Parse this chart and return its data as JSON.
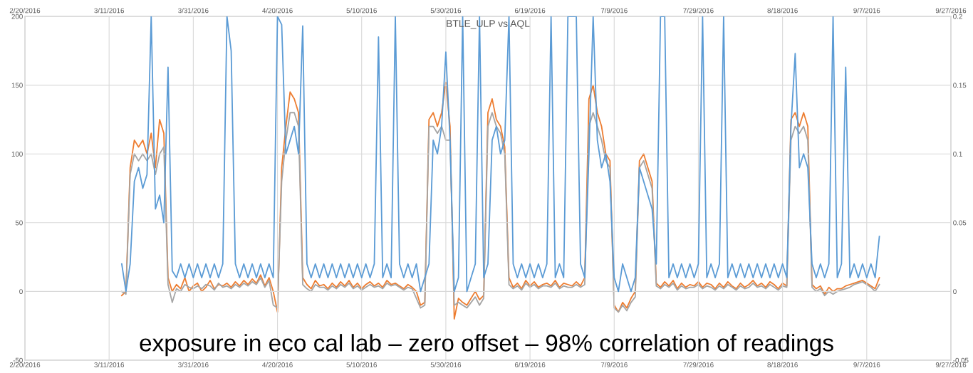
{
  "chart_data": {
    "type": "line",
    "title": "BTLE_ULP vs AQL",
    "x": [
      "2016-03-14",
      "2016-03-15",
      "2016-03-16",
      "2016-03-17",
      "2016-03-18",
      "2016-03-19",
      "2016-03-20",
      "2016-03-21",
      "2016-03-22",
      "2016-03-23",
      "2016-03-24",
      "2016-03-25",
      "2016-03-26",
      "2016-03-27",
      "2016-03-28",
      "2016-03-29",
      "2016-03-30",
      "2016-03-31",
      "2016-04-01",
      "2016-04-02",
      "2016-04-03",
      "2016-04-04",
      "2016-04-05",
      "2016-04-06",
      "2016-04-07",
      "2016-04-08",
      "2016-04-09",
      "2016-04-10",
      "2016-04-11",
      "2016-04-12",
      "2016-04-13",
      "2016-04-14",
      "2016-04-15",
      "2016-04-16",
      "2016-04-17",
      "2016-04-18",
      "2016-04-19",
      "2016-04-20",
      "2016-04-21",
      "2016-04-22",
      "2016-04-23",
      "2016-04-24",
      "2016-04-25",
      "2016-04-26",
      "2016-04-27",
      "2016-04-28",
      "2016-04-29",
      "2016-04-30",
      "2016-05-01",
      "2016-05-02",
      "2016-05-03",
      "2016-05-04",
      "2016-05-05",
      "2016-05-06",
      "2016-05-07",
      "2016-05-08",
      "2016-05-09",
      "2016-05-10",
      "2016-05-11",
      "2016-05-12",
      "2016-05-13",
      "2016-05-14",
      "2016-05-15",
      "2016-05-16",
      "2016-05-17",
      "2016-05-18",
      "2016-05-19",
      "2016-05-20",
      "2016-05-21",
      "2016-05-22",
      "2016-05-23",
      "2016-05-24",
      "2016-05-25",
      "2016-05-26",
      "2016-05-27",
      "2016-05-28",
      "2016-05-29",
      "2016-05-30",
      "2016-05-31",
      "2016-06-01",
      "2016-06-02",
      "2016-06-03",
      "2016-06-04",
      "2016-06-05",
      "2016-06-06",
      "2016-06-07",
      "2016-06-08",
      "2016-06-09",
      "2016-06-10",
      "2016-06-11",
      "2016-06-12",
      "2016-06-13",
      "2016-06-14",
      "2016-06-15",
      "2016-06-16",
      "2016-06-17",
      "2016-06-18",
      "2016-06-19",
      "2016-06-20",
      "2016-06-21",
      "2016-06-22",
      "2016-06-23",
      "2016-06-24",
      "2016-06-25",
      "2016-06-26",
      "2016-06-27",
      "2016-06-28",
      "2016-06-29",
      "2016-06-30",
      "2016-07-01",
      "2016-07-02",
      "2016-07-03",
      "2016-07-04",
      "2016-07-05",
      "2016-07-06",
      "2016-07-07",
      "2016-07-08",
      "2016-07-09",
      "2016-07-10",
      "2016-07-11",
      "2016-07-12",
      "2016-07-13",
      "2016-07-14",
      "2016-07-15",
      "2016-07-16",
      "2016-07-17",
      "2016-07-18",
      "2016-07-19",
      "2016-07-20",
      "2016-07-21",
      "2016-07-22",
      "2016-07-23",
      "2016-07-24",
      "2016-07-25",
      "2016-07-26",
      "2016-07-27",
      "2016-07-28",
      "2016-07-29",
      "2016-07-30",
      "2016-07-31",
      "2016-08-01",
      "2016-08-02",
      "2016-08-03",
      "2016-08-04",
      "2016-08-05",
      "2016-08-06",
      "2016-08-07",
      "2016-08-08",
      "2016-08-09",
      "2016-08-10",
      "2016-08-11",
      "2016-08-12",
      "2016-08-13",
      "2016-08-14",
      "2016-08-15",
      "2016-08-16",
      "2016-08-17",
      "2016-08-18",
      "2016-08-19",
      "2016-08-20",
      "2016-08-21",
      "2016-08-22",
      "2016-08-23",
      "2016-08-24",
      "2016-08-25",
      "2016-08-26",
      "2016-08-27",
      "2016-08-28",
      "2016-08-29",
      "2016-08-30",
      "2016-08-31",
      "2016-09-01",
      "2016-09-02",
      "2016-09-03",
      "2016-09-04",
      "2016-09-05",
      "2016-09-06",
      "2016-09-07",
      "2016-09-08",
      "2016-09-09",
      "2016-09-10"
    ],
    "series": [
      {
        "color": "#5b9bd5",
        "values": [
          20,
          0,
          20,
          80,
          90,
          75,
          85,
          200,
          60,
          70,
          50,
          163,
          15,
          10,
          20,
          10,
          20,
          10,
          20,
          10,
          20,
          10,
          20,
          10,
          20,
          200,
          175,
          20,
          10,
          20,
          10,
          20,
          10,
          20,
          10,
          20,
          10,
          200,
          194,
          100,
          110,
          120,
          100,
          193,
          20,
          10,
          20,
          10,
          20,
          10,
          20,
          10,
          20,
          10,
          20,
          10,
          20,
          10,
          20,
          10,
          20,
          185,
          10,
          20,
          10,
          200,
          20,
          10,
          20,
          10,
          20,
          0,
          10,
          20,
          110,
          100,
          120,
          174,
          110,
          0,
          10,
          200,
          0,
          10,
          20,
          200,
          10,
          20,
          110,
          120,
          100,
          110,
          200,
          20,
          10,
          20,
          10,
          20,
          10,
          20,
          10,
          20,
          200,
          10,
          20,
          10,
          200,
          200,
          200,
          20,
          10,
          100,
          200,
          110,
          90,
          100,
          80,
          10,
          0,
          20,
          10,
          0,
          10,
          90,
          80,
          70,
          60,
          20,
          200,
          200,
          10,
          20,
          10,
          20,
          10,
          20,
          10,
          20,
          200,
          10,
          20,
          10,
          20,
          200,
          10,
          20,
          10,
          20,
          10,
          20,
          10,
          20,
          10,
          20,
          10,
          20,
          10,
          20,
          10,
          120,
          173,
          90,
          100,
          90,
          20,
          10,
          20,
          10,
          20,
          200,
          10,
          20,
          163,
          10,
          20,
          10,
          20,
          10,
          20,
          10,
          40
        ]
      },
      {
        "color": "#ed7d31",
        "axis": "y2",
        "values": [
          -0.003,
          0.0,
          0.09,
          0.11,
          0.105,
          0.11,
          0.1,
          0.115,
          0.09,
          0.125,
          0.115,
          0.01,
          0.0,
          0.005,
          0.002,
          0.01,
          0.0,
          0.004,
          0.006,
          0.0,
          0.003,
          0.008,
          0.002,
          0.005,
          0.004,
          0.006,
          0.003,
          0.007,
          0.004,
          0.008,
          0.005,
          0.009,
          0.006,
          0.012,
          0.004,
          0.01,
          0.0,
          -0.015,
          0.09,
          0.12,
          0.145,
          0.14,
          0.13,
          0.01,
          0.005,
          0.002,
          0.008,
          0.004,
          0.005,
          0.002,
          0.006,
          0.003,
          0.007,
          0.004,
          0.008,
          0.003,
          0.006,
          0.002,
          0.005,
          0.007,
          0.004,
          0.006,
          0.003,
          0.008,
          0.005,
          0.006,
          0.004,
          0.002,
          0.005,
          0.003,
          0.0,
          -0.01,
          -0.008,
          0.125,
          0.13,
          0.12,
          0.13,
          0.152,
          0.12,
          -0.02,
          -0.005,
          -0.008,
          -0.01,
          -0.005,
          0.0,
          -0.006,
          -0.003,
          0.13,
          0.14,
          0.125,
          0.12,
          0.105,
          0.01,
          0.003,
          0.006,
          0.002,
          0.008,
          0.004,
          0.007,
          0.003,
          0.005,
          0.006,
          0.004,
          0.008,
          0.003,
          0.006,
          0.005,
          0.004,
          0.007,
          0.004,
          0.01,
          0.14,
          0.15,
          0.13,
          0.12,
          0.1,
          0.095,
          -0.01,
          -0.015,
          -0.008,
          -0.012,
          -0.005,
          0.0,
          0.095,
          0.1,
          0.09,
          0.08,
          0.006,
          0.003,
          0.007,
          0.004,
          0.008,
          0.002,
          0.006,
          0.003,
          0.005,
          0.004,
          0.007,
          0.003,
          0.006,
          0.005,
          0.002,
          0.006,
          0.003,
          0.007,
          0.004,
          0.002,
          0.006,
          0.003,
          0.005,
          0.008,
          0.004,
          0.006,
          0.003,
          0.007,
          0.005,
          0.002,
          0.006,
          0.004,
          0.125,
          0.13,
          0.12,
          0.13,
          0.12,
          0.005,
          0.002,
          0.004,
          -0.002,
          0.003,
          0.0,
          0.002,
          0.002,
          0.004,
          0.005,
          0.006,
          0.007,
          0.008,
          0.006,
          0.004,
          0.002,
          0.01
        ]
      },
      {
        "color": "#a5a5a5",
        "axis": "y2",
        "values": [
          0.0,
          -0.002,
          0.085,
          0.1,
          0.095,
          0.1,
          0.095,
          0.1,
          0.085,
          0.1,
          0.105,
          0.005,
          -0.008,
          0.002,
          0.0,
          0.005,
          0.003,
          0.002,
          0.004,
          0.002,
          0.005,
          0.004,
          0.001,
          0.006,
          0.003,
          0.004,
          0.002,
          0.005,
          0.003,
          0.006,
          0.004,
          0.007,
          0.005,
          0.01,
          0.003,
          0.008,
          -0.01,
          -0.012,
          0.08,
          0.11,
          0.13,
          0.13,
          0.12,
          0.005,
          0.002,
          0.0,
          0.005,
          0.003,
          0.003,
          0.001,
          0.004,
          0.002,
          0.005,
          0.003,
          0.006,
          0.002,
          0.004,
          0.001,
          0.003,
          0.005,
          0.003,
          0.004,
          0.002,
          0.006,
          0.004,
          0.005,
          0.003,
          0.001,
          0.003,
          0.002,
          -0.005,
          -0.012,
          -0.01,
          0.12,
          0.12,
          0.115,
          0.12,
          0.11,
          0.11,
          -0.01,
          -0.008,
          -0.01,
          -0.012,
          -0.008,
          -0.004,
          -0.01,
          -0.005,
          0.12,
          0.13,
          0.12,
          0.115,
          0.1,
          0.005,
          0.002,
          0.004,
          0.001,
          0.006,
          0.003,
          0.005,
          0.002,
          0.004,
          0.004,
          0.003,
          0.006,
          0.002,
          0.004,
          0.003,
          0.003,
          0.005,
          0.003,
          0.005,
          0.12,
          0.13,
          0.12,
          0.11,
          0.095,
          0.09,
          -0.012,
          -0.015,
          -0.01,
          -0.014,
          -0.008,
          -0.004,
          0.09,
          0.095,
          0.085,
          0.075,
          0.004,
          0.002,
          0.005,
          0.003,
          0.006,
          0.001,
          0.004,
          0.002,
          0.003,
          0.003,
          0.005,
          0.002,
          0.004,
          0.003,
          0.001,
          0.004,
          0.002,
          0.005,
          0.003,
          0.001,
          0.004,
          0.002,
          0.003,
          0.006,
          0.003,
          0.004,
          0.002,
          0.005,
          0.003,
          0.001,
          0.004,
          0.003,
          0.11,
          0.12,
          0.115,
          0.12,
          0.11,
          0.003,
          0.0,
          0.002,
          -0.003,
          0.0,
          -0.002,
          0.0,
          0.001,
          0.002,
          0.003,
          0.005,
          0.006,
          0.007,
          0.005,
          0.003,
          0.0,
          0.005
        ]
      }
    ],
    "xlim": [
      "2016-02-20",
      "2016-09-27"
    ],
    "xticks": [
      {
        "value": "2016-02-20",
        "label": "2/20/2016"
      },
      {
        "value": "2016-03-11",
        "label": "3/11/2016"
      },
      {
        "value": "2016-03-31",
        "label": "3/31/2016"
      },
      {
        "value": "2016-04-20",
        "label": "4/20/2016"
      },
      {
        "value": "2016-05-10",
        "label": "5/10/2016"
      },
      {
        "value": "2016-05-30",
        "label": "5/30/2016"
      },
      {
        "value": "2016-06-19",
        "label": "6/19/2016"
      },
      {
        "value": "2016-07-09",
        "label": "7/9/2016"
      },
      {
        "value": "2016-07-29",
        "label": "7/29/2016"
      },
      {
        "value": "2016-08-18",
        "label": "8/18/2016"
      },
      {
        "value": "2016-09-07",
        "label": "9/7/2016"
      },
      {
        "value": "2016-09-27",
        "label": "9/27/2016"
      }
    ],
    "x2lim": [
      "2016-02-20",
      "2016-09-27"
    ],
    "x2ticks": [
      {
        "value": "2016-02-20",
        "label": "2/20/2016"
      },
      {
        "value": "2016-03-11",
        "label": "3/11/2016"
      },
      {
        "value": "2016-03-31",
        "label": "3/31/2016"
      },
      {
        "value": "2016-04-20",
        "label": "4/20/2016"
      },
      {
        "value": "2016-05-10",
        "label": "5/10/2016"
      },
      {
        "value": "2016-05-30",
        "label": "5/30/2016"
      },
      {
        "value": "2016-06-19",
        "label": "6/19/2016"
      },
      {
        "value": "2016-07-09",
        "label": "7/9/2016"
      },
      {
        "value": "2016-07-29",
        "label": "7/29/2016"
      },
      {
        "value": "2016-08-18",
        "label": "8/18/2016"
      },
      {
        "value": "2016-09-07",
        "label": "9/7/2016"
      },
      {
        "value": "2016-09-27",
        "label": "9/27/2016"
      }
    ],
    "ylim": [
      -50,
      200
    ],
    "yticks": [
      -50,
      0,
      50,
      100,
      150,
      200
    ],
    "y2lim": [
      -0.05,
      0.2
    ],
    "y2ticks": [
      -0.05,
      0,
      0.05,
      0.1,
      0.15,
      0.2
    ],
    "grid": true,
    "line_style": "solid",
    "marker": "none",
    "annotations": [
      "exposure in eco cal lab – zero offset – 98% correlation of readings"
    ]
  }
}
